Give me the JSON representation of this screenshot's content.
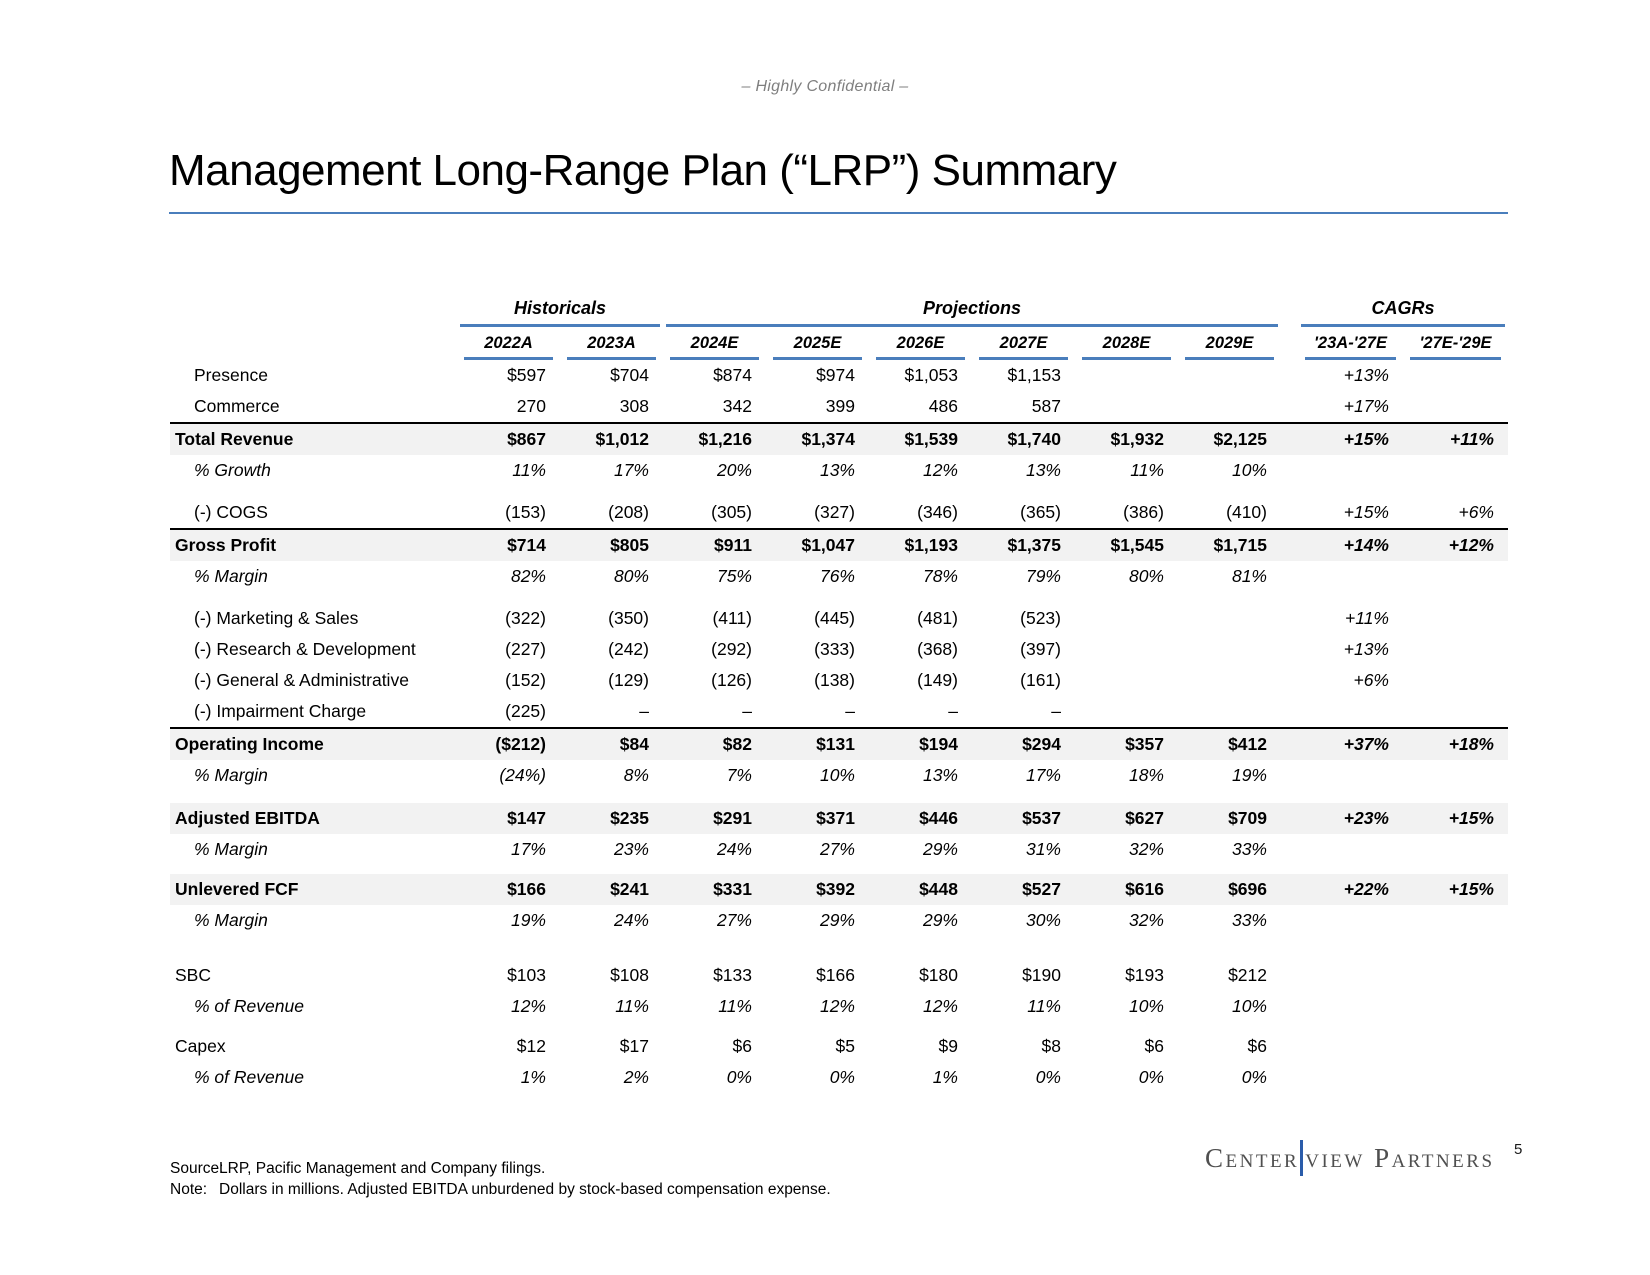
{
  "page": {
    "confidential": "– Highly Confidential –",
    "title": "Management Long-Range Plan (“LRP”) Summary",
    "page_number": "5"
  },
  "footer": {
    "source_label": "Source:",
    "source_text": "LRP, Pacific Management and Company filings.",
    "note_label": "Note:",
    "note_text": "Dollars in millions. Adjusted EBITDA unburdened by stock-based compensation expense."
  },
  "logo": {
    "part1": "Center",
    "part2": "view Partners"
  },
  "colors": {
    "accent_blue": "#4a7ebc",
    "logo_bar_blue": "#2a5caa",
    "band_gray": "#f2f2f2",
    "confidential_gray": "#7f7f7f"
  },
  "table": {
    "groups": [
      {
        "label": "Historicals",
        "span": 2
      },
      {
        "label": "Projections",
        "span": 6
      },
      {
        "label": "CAGRs",
        "span": 2
      }
    ],
    "columns": [
      "2022A",
      "2023A",
      "2024E",
      "2025E",
      "2026E",
      "2027E",
      "2028E",
      "2029E",
      "'23A-'27E",
      "'27E-'29E"
    ],
    "rows": [
      {
        "label": "Presence",
        "type": "plain",
        "indent": true,
        "values": [
          "$597",
          "$704",
          "$874",
          "$974",
          "$1,053",
          "$1,153",
          "",
          "",
          "+13%",
          ""
        ]
      },
      {
        "label": "Commerce",
        "type": "plain",
        "indent": true,
        "values": [
          "270",
          "308",
          "342",
          "399",
          "486",
          "587",
          "",
          "",
          "+17%",
          ""
        ]
      },
      {
        "label": "Total Revenue",
        "type": "bold",
        "border_top": true,
        "shaded": true,
        "values": [
          "$867",
          "$1,012",
          "$1,216",
          "$1,374",
          "$1,539",
          "$1,740",
          "$1,932",
          "$2,125",
          "+15%",
          "+11%"
        ]
      },
      {
        "label": "% Growth",
        "type": "pct",
        "indent": true,
        "values": [
          "11%",
          "17%",
          "20%",
          "13%",
          "12%",
          "13%",
          "11%",
          "10%",
          "",
          ""
        ]
      },
      {
        "spacer": true,
        "h": 11
      },
      {
        "label": "(-) COGS",
        "type": "plain",
        "indent": true,
        "values": [
          "(153)",
          "(208)",
          "(305)",
          "(327)",
          "(346)",
          "(365)",
          "(386)",
          "(410)",
          "+15%",
          "+6%"
        ]
      },
      {
        "label": "Gross Profit",
        "type": "bold",
        "border_top": true,
        "shaded": true,
        "values": [
          "$714",
          "$805",
          "$911",
          "$1,047",
          "$1,193",
          "$1,375",
          "$1,545",
          "$1,715",
          "+14%",
          "+12%"
        ]
      },
      {
        "label": "% Margin",
        "type": "pct",
        "indent": true,
        "values": [
          "82%",
          "80%",
          "75%",
          "76%",
          "78%",
          "79%",
          "80%",
          "81%",
          "",
          ""
        ]
      },
      {
        "spacer": true,
        "h": 11
      },
      {
        "label": "(-) Marketing & Sales",
        "type": "plain",
        "indent": true,
        "values": [
          "(322)",
          "(350)",
          "(411)",
          "(445)",
          "(481)",
          "(523)",
          "",
          "",
          "+11%",
          ""
        ]
      },
      {
        "label": "(-) Research & Development",
        "type": "plain",
        "indent": true,
        "values": [
          "(227)",
          "(242)",
          "(292)",
          "(333)",
          "(368)",
          "(397)",
          "",
          "",
          "+13%",
          ""
        ]
      },
      {
        "label": "(-) General & Administrative",
        "type": "plain",
        "indent": true,
        "values": [
          "(152)",
          "(129)",
          "(126)",
          "(138)",
          "(149)",
          "(161)",
          "",
          "",
          "+6%",
          ""
        ]
      },
      {
        "label": "(-) Impairment Charge",
        "type": "plain",
        "indent": true,
        "values": [
          "(225)",
          "–",
          "–",
          "–",
          "–",
          "–",
          "",
          "",
          "",
          ""
        ]
      },
      {
        "label": "Operating Income",
        "type": "bold",
        "border_top": true,
        "shaded": true,
        "values": [
          "($212)",
          "$84",
          "$82",
          "$131",
          "$194",
          "$294",
          "$357",
          "$412",
          "+37%",
          "+18%"
        ]
      },
      {
        "label": "% Margin",
        "type": "pct",
        "indent": true,
        "values": [
          "(24%)",
          "8%",
          "7%",
          "10%",
          "13%",
          "17%",
          "18%",
          "19%",
          "",
          ""
        ]
      },
      {
        "spacer": true,
        "h": 12
      },
      {
        "label": "Adjusted EBITDA",
        "type": "bold",
        "shaded": true,
        "values": [
          "$147",
          "$235",
          "$291",
          "$371",
          "$446",
          "$537",
          "$627",
          "$709",
          "+23%",
          "+15%"
        ]
      },
      {
        "label": "% Margin",
        "type": "pct",
        "indent": true,
        "values": [
          "17%",
          "23%",
          "24%",
          "27%",
          "29%",
          "31%",
          "32%",
          "33%",
          "",
          ""
        ]
      },
      {
        "spacer": true,
        "h": 9
      },
      {
        "label": "Unlevered FCF",
        "type": "bold",
        "shaded": true,
        "values": [
          "$166",
          "$241",
          "$331",
          "$392",
          "$448",
          "$527",
          "$616",
          "$696",
          "+22%",
          "+15%"
        ]
      },
      {
        "label": "% Margin",
        "type": "pct",
        "indent": true,
        "values": [
          "19%",
          "24%",
          "27%",
          "29%",
          "29%",
          "30%",
          "32%",
          "33%",
          "",
          ""
        ]
      },
      {
        "spacer": true,
        "h": 24
      },
      {
        "label": "SBC",
        "type": "plain",
        "values": [
          "$103",
          "$108",
          "$133",
          "$166",
          "$180",
          "$190",
          "$193",
          "$212",
          "",
          ""
        ]
      },
      {
        "label": "% of Revenue",
        "type": "pct",
        "indent": true,
        "values": [
          "12%",
          "11%",
          "11%",
          "12%",
          "12%",
          "11%",
          "10%",
          "10%",
          "",
          ""
        ]
      },
      {
        "spacer": true,
        "h": 9
      },
      {
        "label": "Capex",
        "type": "plain",
        "values": [
          "$12",
          "$17",
          "$6",
          "$5",
          "$9",
          "$8",
          "$6",
          "$6",
          "",
          ""
        ]
      },
      {
        "label": "% of Revenue",
        "type": "pct",
        "indent": true,
        "values": [
          "1%",
          "2%",
          "0%",
          "0%",
          "1%",
          "0%",
          "0%",
          "0%",
          "",
          ""
        ]
      }
    ]
  }
}
